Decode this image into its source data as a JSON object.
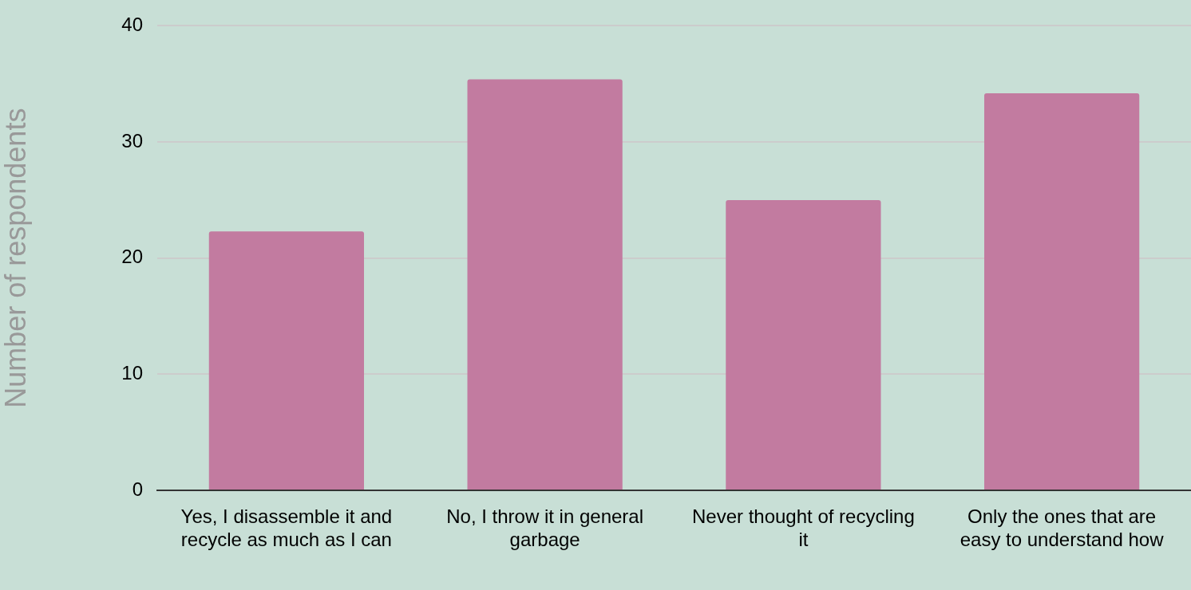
{
  "chart_data": {
    "type": "bar",
    "ylabel": "Number of respondents",
    "categories": [
      "Yes, I disassemble it and recycle as much as I can",
      "No, I throw it in general garbage",
      "Never thought of recycling it",
      "Only the ones that are easy to understand how"
    ],
    "values": [
      22.3,
      35.4,
      25,
      34.2
    ],
    "color": "#c27ba0",
    "ylim": [
      0,
      40
    ],
    "yticks": [
      0,
      10,
      20,
      30,
      40
    ],
    "grid": "y"
  }
}
